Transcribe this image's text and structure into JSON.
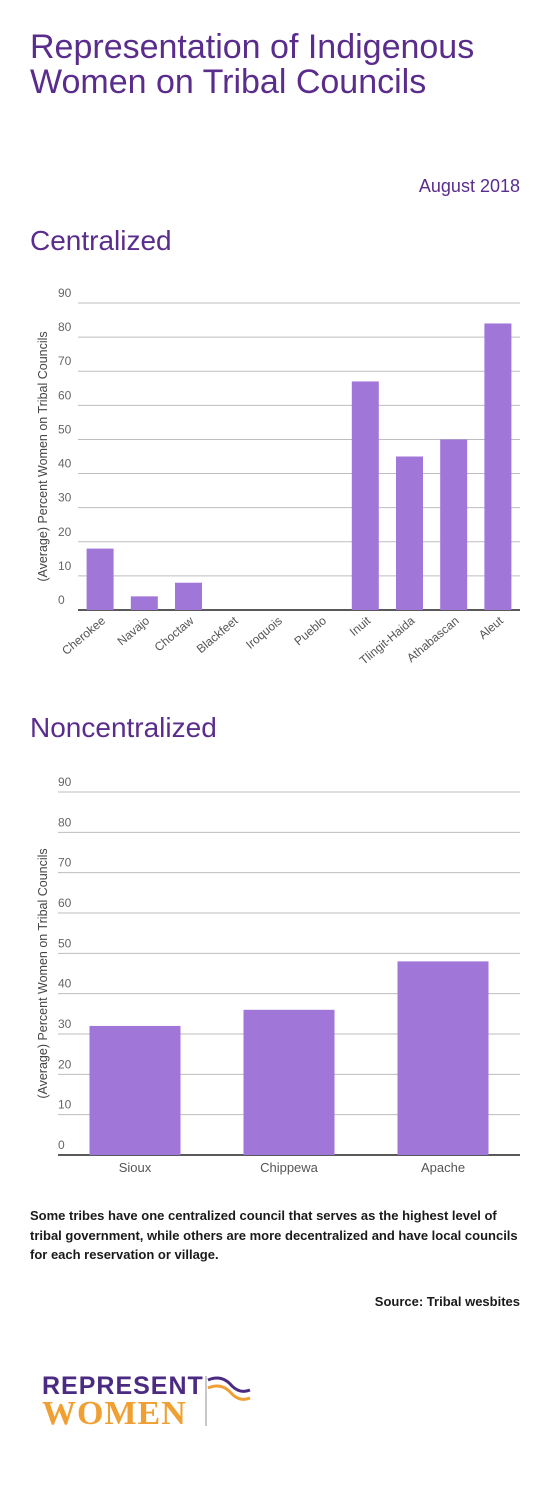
{
  "title": "Representation of Indigenous Women on Tribal Councils",
  "date": "August 2018",
  "colors": {
    "accent": "#5a2d8c",
    "bar": "#a076d8",
    "logo_purple": "#4b2a82",
    "logo_orange": "#f0a032"
  },
  "chart_data": [
    {
      "type": "bar",
      "title": "Centralized",
      "ylabel": "(Average) Percent Women on Tribal Councils",
      "categories": [
        "Cherokee",
        "Navajo",
        "Choctaw",
        "Blackfeet",
        "Iroquois",
        "Pueblo",
        "Inuit",
        "Tlingit-Haida",
        "Athabascan",
        "Aleut"
      ],
      "values": [
        18,
        4,
        8,
        0,
        0,
        0,
        67,
        45,
        50,
        84
      ],
      "yticks": [
        "0",
        "10",
        "20",
        "30",
        "40",
        "50",
        "60",
        "70",
        "80",
        "90"
      ],
      "ylim": [
        0,
        90
      ],
      "grid": true
    },
    {
      "type": "bar",
      "title": "Noncentralized",
      "ylabel": "(Average) Percent Women on Tribal Councils",
      "categories": [
        "Sioux",
        "Chippewa",
        "Apache"
      ],
      "values": [
        32,
        36,
        48
      ],
      "yticks": [
        "0",
        "10",
        "20",
        "30",
        "40",
        "50",
        "60",
        "70",
        "80",
        "90"
      ],
      "ylim": [
        0,
        90
      ],
      "grid": true
    }
  ],
  "note": "Some tribes have one centralized council that serves as the highest level of tribal government, while others are more decentralized and have local councils for each reservation or village.",
  "source": "Source: Tribal wesbites",
  "logo": {
    "line1": "REPRESENT",
    "line2": "WOMEN"
  }
}
